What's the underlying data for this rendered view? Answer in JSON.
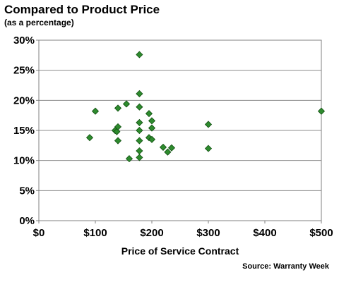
{
  "header": {
    "title": "Compared to Product Price",
    "subtitle": "(as a percentage)"
  },
  "footer": {
    "source": "Source: Warranty Week"
  },
  "colors": {
    "marker_fill": "#2e8b2e",
    "marker_stroke": "#0f4d0f",
    "gridline": "#8c8c8c"
  },
  "chart_data": {
    "type": "scatter",
    "title": "Compared to Product Price",
    "subtitle": "(as a percentage)",
    "xlabel": "Price of Service Contract",
    "ylabel": "",
    "xlim": [
      0,
      500
    ],
    "ylim": [
      0,
      30
    ],
    "grid": true,
    "x_ticks": [
      0,
      100,
      200,
      300,
      400,
      500
    ],
    "x_tick_labels": [
      "$0",
      "$100",
      "$200",
      "$300",
      "$400",
      "$500"
    ],
    "y_ticks": [
      0,
      5,
      10,
      15,
      20,
      25,
      30
    ],
    "y_tick_labels": [
      "0%",
      "5%",
      "10%",
      "15%",
      "20%",
      "25%",
      "30%"
    ],
    "points": [
      {
        "x": 90,
        "y": 13.8
      },
      {
        "x": 100,
        "y": 18.2
      },
      {
        "x": 135,
        "y": 15.0
      },
      {
        "x": 138,
        "y": 14.8
      },
      {
        "x": 140,
        "y": 18.7
      },
      {
        "x": 140,
        "y": 15.6
      },
      {
        "x": 140,
        "y": 13.3
      },
      {
        "x": 155,
        "y": 19.4
      },
      {
        "x": 160,
        "y": 10.3
      },
      {
        "x": 178,
        "y": 27.6
      },
      {
        "x": 178,
        "y": 21.1
      },
      {
        "x": 178,
        "y": 18.9
      },
      {
        "x": 178,
        "y": 16.3
      },
      {
        "x": 178,
        "y": 15.0
      },
      {
        "x": 178,
        "y": 13.3
      },
      {
        "x": 178,
        "y": 11.6
      },
      {
        "x": 178,
        "y": 10.5
      },
      {
        "x": 195,
        "y": 17.8
      },
      {
        "x": 195,
        "y": 13.8
      },
      {
        "x": 200,
        "y": 16.6
      },
      {
        "x": 200,
        "y": 15.4
      },
      {
        "x": 200,
        "y": 13.5
      },
      {
        "x": 220,
        "y": 12.2
      },
      {
        "x": 228,
        "y": 11.4
      },
      {
        "x": 235,
        "y": 12.1
      },
      {
        "x": 300,
        "y": 16.0
      },
      {
        "x": 300,
        "y": 12.0
      },
      {
        "x": 500,
        "y": 18.2
      }
    ]
  }
}
